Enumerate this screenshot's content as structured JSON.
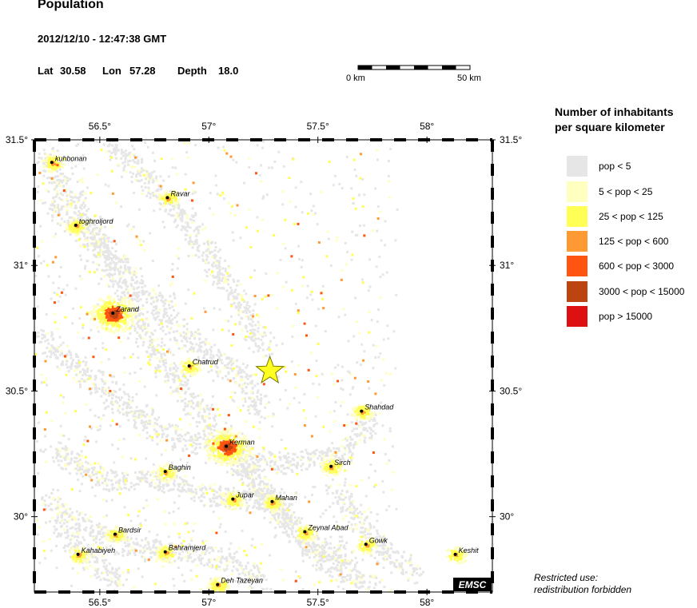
{
  "header": {
    "title": "Population",
    "datetime": "2012/12/10 - 12:47:38 GMT",
    "lat_label": "Lat",
    "lat": "30.58",
    "lon_label": "Lon",
    "lon": "57.28",
    "depth_label": "Depth",
    "depth": "18.0"
  },
  "scale_bar": {
    "start_label": "0 km",
    "end_label": "50 km"
  },
  "map": {
    "lon_min": 56.2,
    "lon_max": 58.3,
    "lat_min": 29.7,
    "lat_max": 31.5,
    "lon_ticks": [
      "56.5°",
      "57°",
      "57.5°",
      "58°"
    ],
    "lat_ticks": [
      "31.5°",
      "31°",
      "30.5°",
      "30°"
    ],
    "epicenter": {
      "lon": 57.28,
      "lat": 30.58
    },
    "watermark": "EMSC",
    "cities": [
      {
        "name": "kuhbonan",
        "lon": 56.28,
        "lat": 31.41
      },
      {
        "name": "Ravar",
        "lon": 56.81,
        "lat": 31.27
      },
      {
        "name": "toghroljord",
        "lon": 56.39,
        "lat": 31.16
      },
      {
        "name": "Zarand",
        "lon": 56.56,
        "lat": 30.81
      },
      {
        "name": "Chatrud",
        "lon": 56.91,
        "lat": 30.6
      },
      {
        "name": "Shahdad",
        "lon": 57.7,
        "lat": 30.42
      },
      {
        "name": "Kerman",
        "lon": 57.08,
        "lat": 30.28
      },
      {
        "name": "Sirch",
        "lon": 57.56,
        "lat": 30.2
      },
      {
        "name": "Baghin",
        "lon": 56.8,
        "lat": 30.18
      },
      {
        "name": "Jupar",
        "lon": 57.11,
        "lat": 30.07
      },
      {
        "name": "Mahan",
        "lon": 57.29,
        "lat": 30.06
      },
      {
        "name": "Zeynal Abad",
        "lon": 57.44,
        "lat": 29.94
      },
      {
        "name": "Bardsir",
        "lon": 56.57,
        "lat": 29.93
      },
      {
        "name": "Gowk",
        "lon": 57.72,
        "lat": 29.89
      },
      {
        "name": "Kahabiyeh",
        "lon": 56.4,
        "lat": 29.85
      },
      {
        "name": "Bahramjerd",
        "lon": 56.8,
        "lat": 29.86
      },
      {
        "name": "Keshit",
        "lon": 58.13,
        "lat": 29.85
      },
      {
        "name": "Deh Tazeyan",
        "lon": 57.04,
        "lat": 29.73
      }
    ]
  },
  "legend": {
    "title_line1": "Number of inhabitants",
    "title_line2": "per square kilometer",
    "items": [
      {
        "label": "pop < 5",
        "color": "#e6e6e6"
      },
      {
        "label": "5 < pop < 25",
        "color": "#ffffc0"
      },
      {
        "label": "25 < pop < 125",
        "color": "#ffff55"
      },
      {
        "label": "125 < pop < 600",
        "color": "#ff9933"
      },
      {
        "label": "600 < pop < 3000",
        "color": "#ff5511"
      },
      {
        "label": "3000 < pop < 15000",
        "color": "#bb4411"
      },
      {
        "label": "pop > 15000",
        "color": "#dd1111"
      }
    ]
  },
  "footer": {
    "restricted_line1": "Restricted use:",
    "restricted_line2": "redistribution forbidden"
  }
}
